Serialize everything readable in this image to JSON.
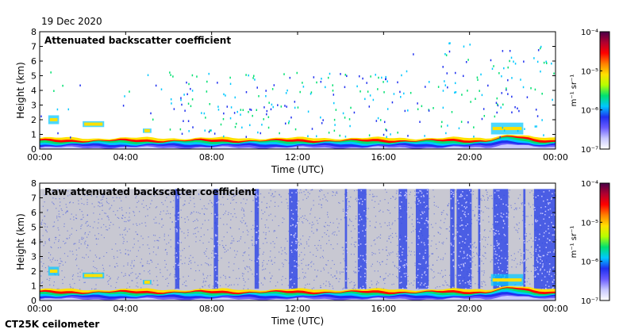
{
  "date": "19 Dec 2020",
  "instrument": "CT25K ceilometer",
  "colors": {
    "sky_raw": "#c8c8d2",
    "noise": "#3a4ee0",
    "colormap": [
      "#ffffff",
      "#c8c8ff",
      "#6a5cff",
      "#1f30f0",
      "#00c8ff",
      "#00e070",
      "#b6ff00",
      "#ffe000",
      "#ff8000",
      "#ff0000",
      "#b00030",
      "#4a0048"
    ]
  },
  "chart_data": [
    {
      "type": "heatmap",
      "title": "Attenuated backscatter coefficient",
      "xlabel": "Time (UTC)",
      "ylabel": "Height (km)",
      "x_tick_labels": [
        "00:00",
        "04:00",
        "08:00",
        "12:00",
        "16:00",
        "20:00",
        "00:00"
      ],
      "x_range_hours": [
        0,
        24
      ],
      "y_ticks": [
        0,
        1,
        2,
        3,
        4,
        5,
        6,
        7,
        8
      ],
      "y_range_km": [
        0,
        8
      ],
      "colorbar": {
        "label": "m⁻¹ sr⁻¹",
        "tick_labels": [
          "10⁻⁴",
          "10⁻⁵",
          "10⁻⁶",
          "10⁻⁷"
        ],
        "log_range": [
          -7,
          -4
        ]
      },
      "features": {
        "aerosol_layer_top_km": 0.75,
        "low_cloud_patches": [
          {
            "t_start_h": 0.4,
            "t_end_h": 0.9,
            "z_bottom_km": 1.7,
            "z_top_km": 2.3
          },
          {
            "t_start_h": 2.0,
            "t_end_h": 3.0,
            "z_bottom_km": 1.5,
            "z_top_km": 1.9
          },
          {
            "t_start_h": 4.8,
            "t_end_h": 5.2,
            "z_bottom_km": 1.1,
            "z_top_km": 1.4
          },
          {
            "t_start_h": 21.0,
            "t_end_h": 22.5,
            "z_bottom_km": 1.0,
            "z_top_km": 1.8
          }
        ]
      }
    },
    {
      "type": "heatmap",
      "title": "Raw attenuated backscatter coefficient",
      "xlabel": "Time (UTC)",
      "ylabel": "Height (km)",
      "x_tick_labels": [
        "00:00",
        "04:00",
        "08:00",
        "12:00",
        "16:00",
        "20:00",
        "00:00"
      ],
      "x_range_hours": [
        0,
        24
      ],
      "y_ticks": [
        0,
        1,
        2,
        3,
        4,
        5,
        6,
        7,
        8
      ],
      "y_range_km": [
        0,
        8
      ],
      "colorbar": {
        "label": "m⁻¹ sr⁻¹",
        "tick_labels": [
          "10⁻⁴",
          "10⁻⁵",
          "10⁻⁶",
          "10⁻⁷"
        ],
        "log_range": [
          -7,
          -4
        ]
      },
      "features": {
        "data_top_km": 7.6,
        "noise_bands_h": [
          [
            6.3,
            6.5
          ],
          [
            8.1,
            8.3
          ],
          [
            10.0,
            10.2
          ],
          [
            11.6,
            12.0
          ],
          [
            14.2,
            14.3
          ],
          [
            14.8,
            15.2
          ],
          [
            16.7,
            17.1
          ],
          [
            17.5,
            18.1
          ],
          [
            19.1,
            19.3
          ],
          [
            19.4,
            20.1
          ],
          [
            20.4,
            20.5
          ],
          [
            21.1,
            21.8
          ],
          [
            22.5,
            22.6
          ],
          [
            23.0,
            24.0
          ]
        ]
      }
    }
  ]
}
